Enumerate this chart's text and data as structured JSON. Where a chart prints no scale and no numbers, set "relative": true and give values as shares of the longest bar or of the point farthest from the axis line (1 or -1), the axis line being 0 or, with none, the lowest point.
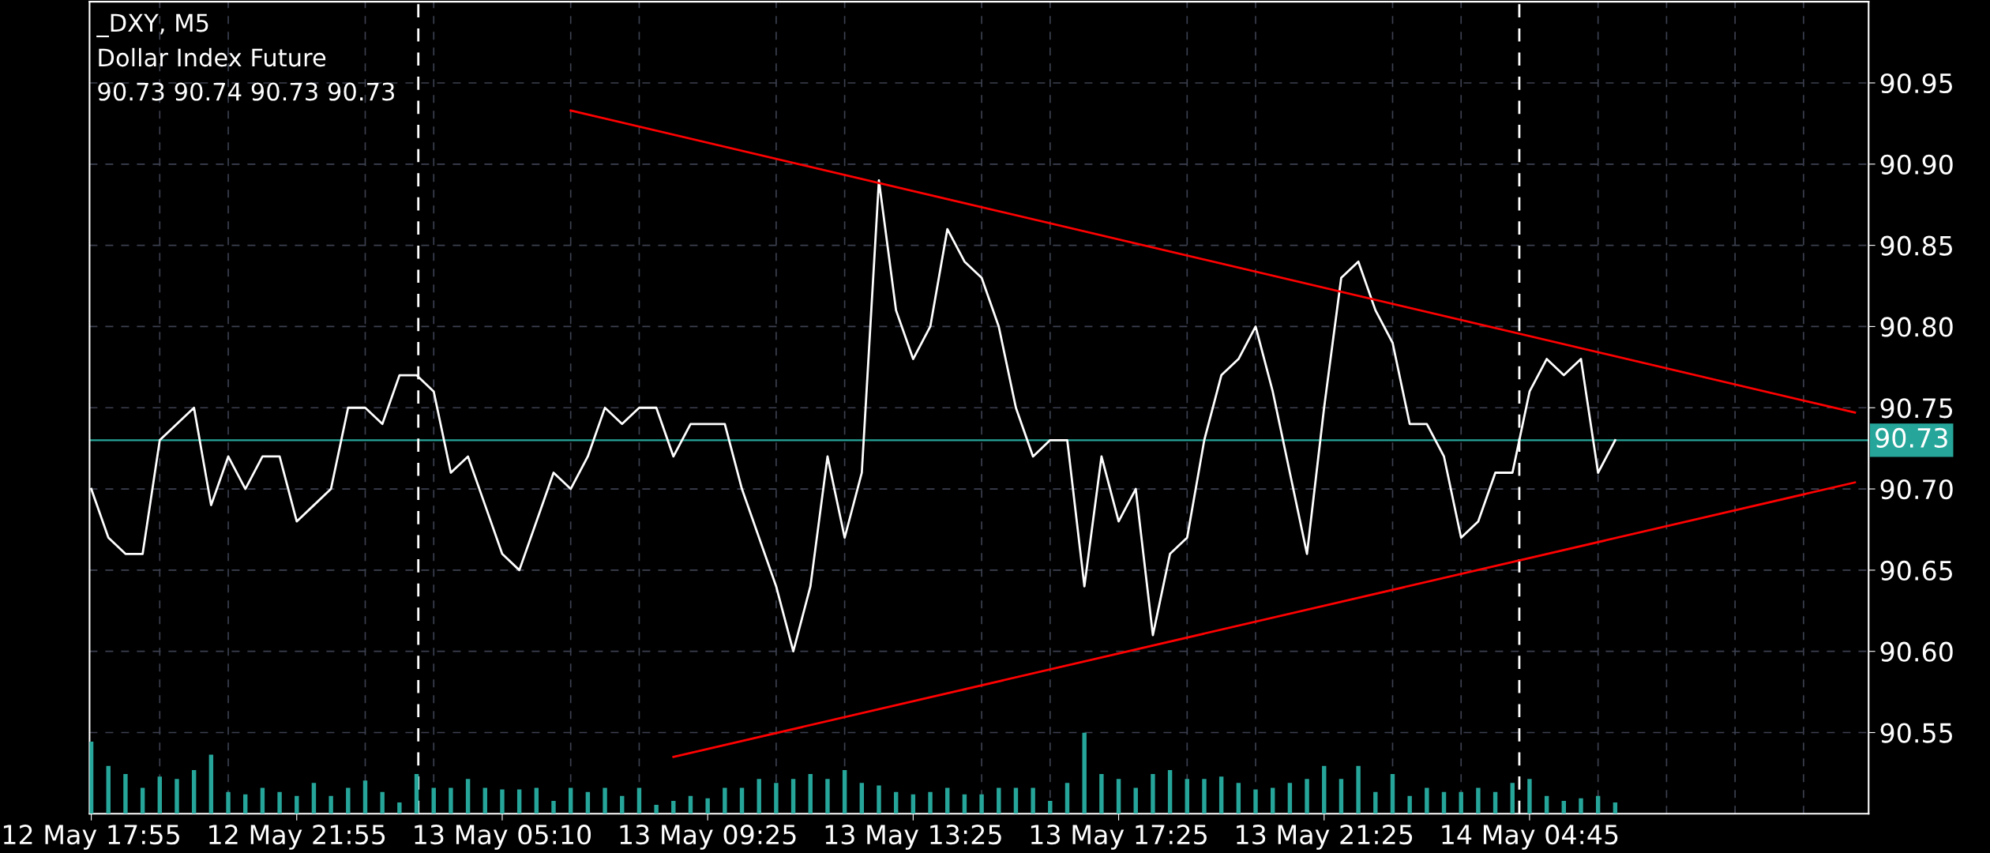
{
  "chart_data": [
    {
      "type": "line",
      "title": "_DXY, M5",
      "subtitle": "Dollar Index Future",
      "annotations": [
        "90.73 90.74 90.73 90.73"
      ],
      "categories": [
        "12 May 17:55",
        null,
        null,
        null,
        null,
        null,
        null,
        null,
        null,
        null,
        null,
        null,
        "12 May 21:55",
        null,
        null,
        null,
        null,
        null,
        null,
        null,
        null,
        null,
        null,
        null,
        "13 May 05:10",
        null,
        null,
        null,
        null,
        null,
        null,
        null,
        null,
        null,
        null,
        null,
        "13 May 09:25",
        null,
        null,
        null,
        null,
        null,
        null,
        null,
        null,
        null,
        null,
        null,
        "13 May 13:25",
        null,
        null,
        null,
        null,
        null,
        null,
        null,
        null,
        null,
        null,
        null,
        "13 May 17:25",
        null,
        null,
        null,
        null,
        null,
        null,
        null,
        null,
        null,
        null,
        null,
        "13 May 21:25",
        null,
        null,
        null,
        null,
        null,
        null,
        null,
        null,
        null,
        null,
        null,
        "14 May 04:45",
        null,
        null,
        null,
        null,
        null,
        null,
        null,
        null,
        null,
        null,
        null,
        null,
        null,
        null,
        null,
        null,
        null,
        null,
        null
      ],
      "series": [
        {
          "type": "line",
          "color": "#ffffff",
          "values": [
            90.7,
            90.67,
            90.66,
            90.66,
            90.73,
            90.74,
            90.75,
            90.69,
            90.72,
            90.7,
            90.72,
            90.72,
            90.68,
            90.69,
            90.7,
            90.75,
            90.75,
            90.74,
            90.77,
            90.77,
            90.76,
            90.71,
            90.72,
            90.69,
            90.66,
            90.65,
            90.68,
            90.71,
            90.7,
            90.72,
            90.75,
            90.74,
            90.75,
            90.75,
            90.72,
            90.74,
            90.74,
            90.74,
            90.7,
            90.67,
            90.64,
            90.6,
            90.64,
            90.72,
            90.67,
            90.71,
            90.89,
            90.81,
            90.78,
            90.8,
            90.86,
            90.84,
            90.83,
            90.8,
            90.75,
            90.72,
            90.73,
            90.73,
            90.64,
            90.72,
            90.68,
            90.7,
            90.61,
            90.66,
            90.67,
            90.73,
            90.77,
            90.78,
            90.8,
            90.76,
            90.71,
            90.66,
            90.75,
            90.83,
            90.84,
            90.81,
            90.79,
            90.74,
            90.74,
            90.72,
            90.67,
            90.68,
            90.71,
            90.71,
            90.76,
            90.78,
            90.77,
            90.78,
            90.71,
            90.73,
            null,
            null,
            null,
            null,
            null,
            null,
            null,
            null,
            null,
            null,
            null,
            null,
            null,
            null
          ]
        },
        {
          "type": "line",
          "color": "#ff0000",
          "values": [
            null,
            null,
            null,
            null,
            null,
            null,
            null,
            null,
            null,
            null,
            null,
            null,
            null,
            null,
            null,
            null,
            null,
            null,
            null,
            null,
            null,
            null,
            null,
            null,
            null,
            null,
            null,
            null,
            90.933,
            null,
            null,
            null,
            null,
            null,
            null,
            null,
            null,
            null,
            null,
            null,
            null,
            null,
            null,
            null,
            null,
            null,
            null,
            null,
            null,
            null,
            null,
            null,
            null,
            null,
            null,
            null,
            null,
            null,
            null,
            null,
            null,
            null,
            null,
            null,
            null,
            null,
            null,
            null,
            null,
            null,
            null,
            null,
            null,
            null,
            null,
            null,
            null,
            null,
            null,
            null,
            null,
            null,
            null,
            null,
            null,
            null,
            null,
            null,
            null,
            null,
            null,
            null,
            null,
            null,
            null,
            null,
            null,
            null,
            null,
            null,
            null,
            null,
            null,
            90.747
          ]
        },
        {
          "type": "line",
          "color": "#ff0000",
          "values": [
            null,
            null,
            null,
            null,
            null,
            null,
            null,
            null,
            null,
            null,
            null,
            null,
            null,
            null,
            null,
            null,
            null,
            null,
            null,
            null,
            null,
            null,
            null,
            null,
            null,
            null,
            null,
            null,
            null,
            null,
            null,
            null,
            null,
            null,
            90.535,
            null,
            null,
            null,
            null,
            null,
            null,
            null,
            null,
            null,
            null,
            null,
            null,
            null,
            null,
            null,
            null,
            null,
            null,
            null,
            null,
            null,
            null,
            null,
            null,
            null,
            null,
            null,
            null,
            null,
            null,
            null,
            null,
            null,
            null,
            null,
            null,
            null,
            null,
            null,
            null,
            null,
            null,
            null,
            null,
            null,
            null,
            null,
            null,
            null,
            null,
            null,
            null,
            null,
            null,
            null,
            null,
            null,
            null,
            null,
            null,
            null,
            null,
            null,
            null,
            null,
            null,
            null,
            null,
            90.704
          ]
        }
      ],
      "ylim": [
        90.5,
        91.0
      ],
      "yticks": [
        90.55,
        {
          "value": 90.6,
          "label": "90.60"
        },
        90.65,
        {
          "value": 90.7,
          "label": "90.70"
        },
        90.75,
        {
          "value": 90.8,
          "label": "90.80"
        },
        90.85,
        {
          "value": 90.9,
          "label": "90.90"
        },
        90.95
      ],
      "grid": true,
      "ref_lines": [
        {
          "axis": "y",
          "value": 90.73,
          "label": "90.73",
          "color": "#26a69a",
          "line_style": "solid"
        }
      ]
    },
    {
      "type": "bar",
      "relative": true,
      "color": "#26a69a",
      "categories": [
        null,
        null,
        null,
        null,
        null,
        null,
        null,
        null,
        null,
        null,
        null,
        null,
        null,
        null,
        null,
        null,
        null,
        null,
        null,
        null,
        null,
        null,
        null,
        null,
        null,
        null,
        null,
        null,
        null,
        null,
        null,
        null,
        null,
        null,
        null,
        null,
        null,
        null,
        null,
        null,
        null,
        null,
        null,
        null,
        null,
        null,
        null,
        null,
        null,
        null,
        null,
        null,
        null,
        null,
        null,
        null,
        null,
        null,
        null,
        null,
        null,
        null,
        null,
        null,
        null,
        null,
        null,
        null,
        null,
        null,
        null,
        null,
        null,
        null,
        null,
        null,
        null,
        null,
        null,
        null,
        null,
        null,
        null,
        null,
        null,
        null,
        null,
        null,
        null,
        null,
        null,
        null,
        null,
        null,
        null,
        null,
        null,
        null,
        null,
        null,
        null,
        null,
        null,
        null
      ],
      "values": [
        0.89,
        0.59,
        0.49,
        0.32,
        0.46,
        0.43,
        0.54,
        0.73,
        0.27,
        0.24,
        0.32,
        0.27,
        0.22,
        0.38,
        0.22,
        0.32,
        0.41,
        0.27,
        0.14,
        0.49,
        0.32,
        0.32,
        0.43,
        0.32,
        0.3,
        0.3,
        0.32,
        0.16,
        0.32,
        0.27,
        0.32,
        0.22,
        0.32,
        0.11,
        0.16,
        0.22,
        0.19,
        0.32,
        0.32,
        0.43,
        0.38,
        0.43,
        0.49,
        0.43,
        0.54,
        0.38,
        0.35,
        0.27,
        0.24,
        0.27,
        0.32,
        0.24,
        0.24,
        0.32,
        0.32,
        0.32,
        0.16,
        0.38,
        1.0,
        0.49,
        0.43,
        0.32,
        0.49,
        0.54,
        0.43,
        0.43,
        0.46,
        0.38,
        0.3,
        0.32,
        0.38,
        0.43,
        0.59,
        0.43,
        0.59,
        0.27,
        0.49,
        0.22,
        0.32,
        0.27,
        0.27,
        0.32,
        0.27,
        0.38,
        0.43,
        0.22,
        0.16,
        0.19,
        0.22,
        0.14,
        null,
        null,
        null,
        null,
        null,
        null,
        null,
        null,
        null,
        null,
        null,
        null,
        null,
        null
      ]
    }
  ]
}
